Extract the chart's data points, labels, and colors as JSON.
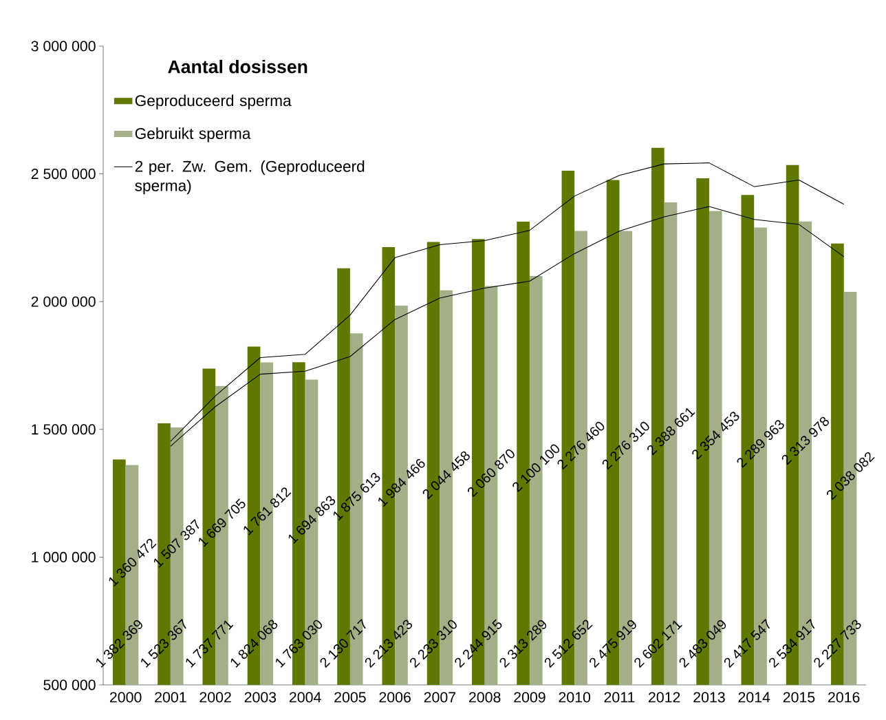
{
  "chart_data": {
    "type": "bar",
    "title": "Aantal dosissen",
    "categories": [
      "2000",
      "2001",
      "2002",
      "2003",
      "2004",
      "2005",
      "2006",
      "2007",
      "2008",
      "2009",
      "2010",
      "2011",
      "2012",
      "2013",
      "2014",
      "2015",
      "2016"
    ],
    "series": [
      {
        "name": "Geproduceerd sperma",
        "color": "#5f7800",
        "values": [
          1382369,
          1523367,
          1737771,
          1824068,
          1763030,
          2130717,
          2213423,
          2233310,
          2244915,
          2313289,
          2512652,
          2475919,
          2602171,
          2483049,
          2417547,
          2534917,
          2227733
        ],
        "value_labels": [
          "1 382 369",
          "1 523 367",
          "1 737 771",
          "1 824 068",
          "1 763 030",
          "2 130 717",
          "2 213 423",
          "2 233 310",
          "2 244 915",
          "2 313 289",
          "2 512 652",
          "2 475 919",
          "2 602 171",
          "2 483 049",
          "2 417 547",
          "2 534 917",
          "2 227 733"
        ]
      },
      {
        "name": "Gebruikt sperma",
        "color": "#a3b087",
        "values": [
          1360472,
          1507387,
          1669705,
          1761812,
          1694863,
          1875613,
          1984466,
          2044458,
          2060870,
          2100100,
          2276460,
          2276310,
          2388661,
          2354453,
          2289963,
          2313978,
          2038082
        ],
        "value_labels": [
          "1 360 472",
          "1 507 387",
          "1 669 705",
          "1 761 812",
          "1 694 863",
          "1 875 613",
          "1 984 466",
          "2 044 458",
          "2 060 870",
          "2 100 100",
          "2 276 460",
          "2 276 310",
          "2 388 661",
          "2 354 453",
          "2 289 963",
          "2 313 978",
          "2 038 082"
        ]
      },
      {
        "type": "line",
        "name": "2 per. Zw. Gem. (Geproduceerd sperma)",
        "color": "#000000",
        "values": [
          null,
          1453000,
          1631000,
          1781000,
          1794000,
          1947000,
          2172000,
          2223000,
          2239000,
          2279000,
          2413000,
          2494000,
          2539000,
          2543000,
          2450000,
          2476000,
          2381000
        ]
      },
      {
        "type": "line",
        "color": "#000000",
        "values": [
          null,
          1434000,
          1589000,
          1716000,
          1728000,
          1785000,
          1930000,
          2014000,
          2053000,
          2080000,
          2188000,
          2276000,
          2332000,
          2372000,
          2322000,
          2302000,
          2176000
        ]
      }
    ],
    "ylim": [
      500000,
      3000000
    ],
    "yticks": [
      {
        "value": 500000,
        "label": "500 000"
      },
      {
        "value": 1000000,
        "label": "1 000 000"
      },
      {
        "value": 1500000,
        "label": "1 500 000"
      },
      {
        "value": 2000000,
        "label": "2 000 000"
      },
      {
        "value": 2500000,
        "label": "2 500 000"
      },
      {
        "value": 3000000,
        "label": "3 000 000"
      }
    ],
    "legend": "top left"
  }
}
